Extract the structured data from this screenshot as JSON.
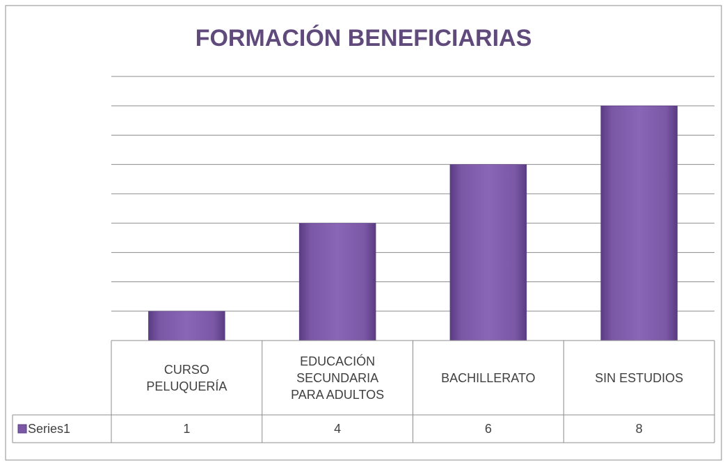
{
  "chart_data": {
    "type": "bar",
    "title": "FORMACIÓN BENEFICIARIAS",
    "categories": [
      "CURSO PELUQUERÍA",
      "EDUCACIÓN SECUNDARIA PARA ADULTOS",
      "BACHILLERATO",
      "SIN ESTUDIOS"
    ],
    "series": [
      {
        "name": "Series1",
        "color": "#7b58a6",
        "values": [
          1,
          4,
          6,
          8
        ]
      }
    ],
    "ylim": [
      0,
      9
    ],
    "yticks": [
      0,
      1,
      2,
      3,
      4,
      5,
      6,
      7,
      8,
      9
    ],
    "grid": true,
    "data_table": true
  }
}
